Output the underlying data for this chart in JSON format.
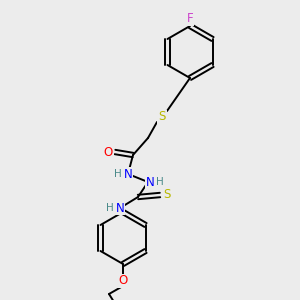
{
  "bg_color": "#ececec",
  "atom_colors": {
    "C": "#000000",
    "H": "#4a8a8a",
    "N": "#0000ff",
    "O": "#ff0000",
    "S": "#b8b800",
    "F": "#cc44cc"
  },
  "bond_color": "#000000",
  "font_size_atom": 8.5,
  "font_size_small": 7.5,
  "lw": 1.4
}
